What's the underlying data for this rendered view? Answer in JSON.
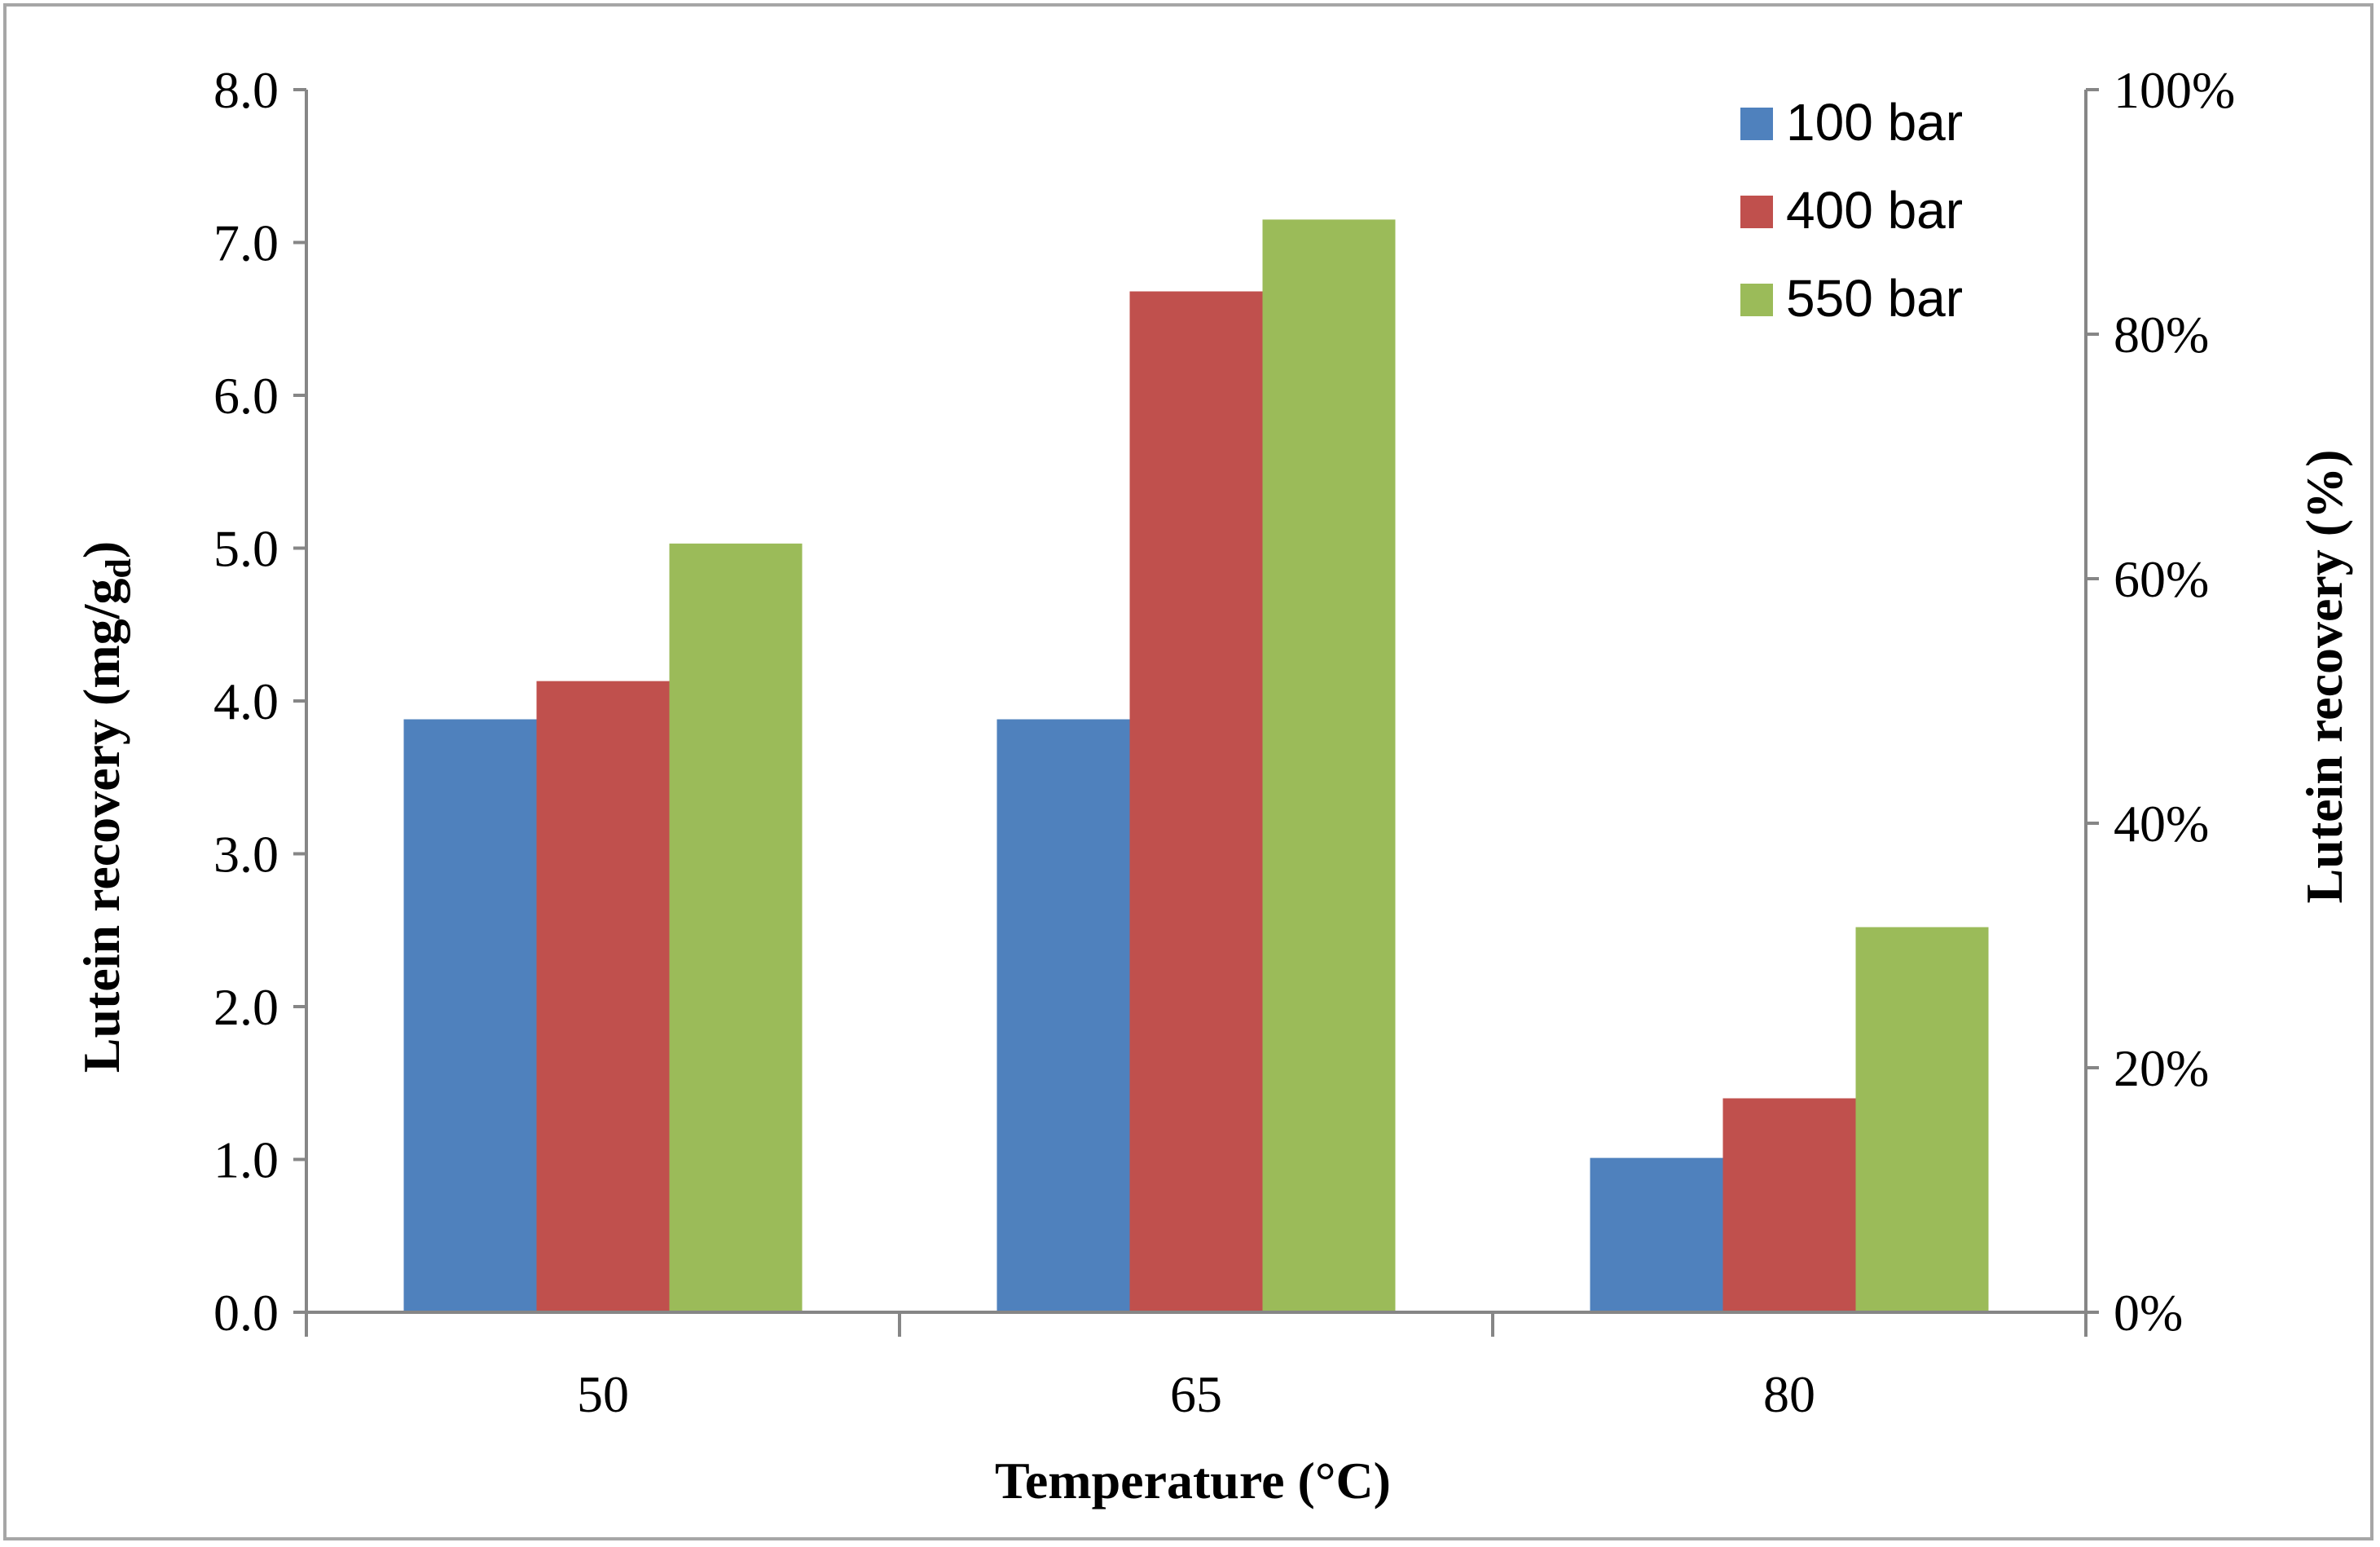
{
  "chart_data": {
    "type": "bar",
    "title": "",
    "xlabel": "Temperature (°C)",
    "ylabel": "Lutein recovery (mg/g",
    "ylabel_subscript": "d",
    "ylabel_close": ")",
    "y2label": "Lutein recovery (%)",
    "categories": [
      "50",
      "65",
      "80"
    ],
    "ylim": [
      0,
      8
    ],
    "y_ticks": [
      "0.0",
      "1.0",
      "2.0",
      "3.0",
      "4.0",
      "5.0",
      "6.0",
      "7.0",
      "8.0"
    ],
    "y2lim": [
      0,
      100
    ],
    "y2_ticks": [
      "0%",
      "20%",
      "40%",
      "60%",
      "80%",
      "100%"
    ],
    "legend_position": "top-right",
    "series": [
      {
        "name": "100 bar",
        "color": "#4f81bd",
        "values": [
          3.88,
          3.88,
          1.01
        ]
      },
      {
        "name": "400 bar",
        "color": "#c0504d",
        "values": [
          4.13,
          6.68,
          1.4
        ]
      },
      {
        "name": "550 bar",
        "color": "#9bbb59",
        "values": [
          5.03,
          7.15,
          2.52
        ]
      }
    ]
  }
}
